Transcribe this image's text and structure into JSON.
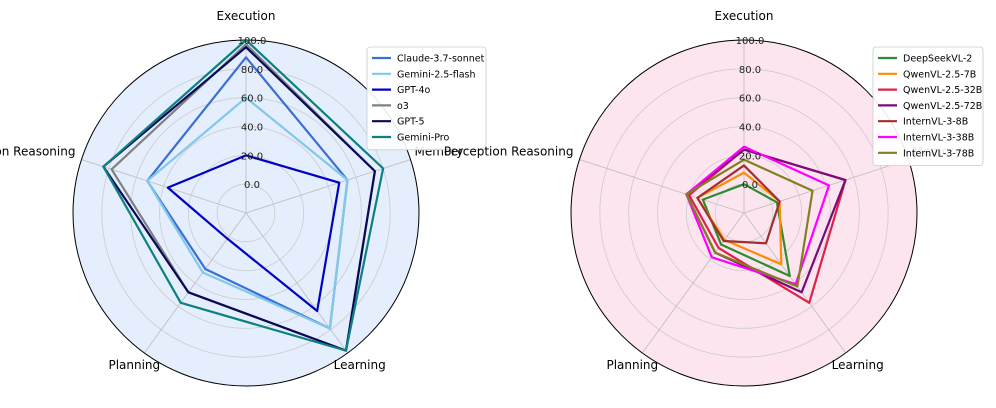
{
  "chart_data": [
    {
      "type": "radar",
      "axes": [
        "Execution",
        "Memory",
        "Learning",
        "Planning",
        "Perception Reasoning"
      ],
      "r_ticks": [
        "0.0",
        "20.0",
        "40.0",
        "60.0",
        "80.0",
        "100.0"
      ],
      "rlim": [
        -20,
        100
      ],
      "background": "#e4eefc",
      "legend": "top-right",
      "series": [
        {
          "name": "Claude-3.7-sonnet",
          "color": "#3b6fd4",
          "values": [
            88,
            54,
            79,
            28,
            52
          ]
        },
        {
          "name": "Gemini-2.5-flash",
          "color": "#82c8e8",
          "values": [
            60,
            54,
            79,
            31,
            52
          ]
        },
        {
          "name": "GPT-4o",
          "color": "#0000c4",
          "values": [
            20,
            48,
            64,
            2,
            37
          ]
        },
        {
          "name": "o3",
          "color": "#808080",
          "values": [
            97,
            74,
            98,
            48,
            78
          ]
        },
        {
          "name": "GPT-5",
          "color": "#08085a",
          "values": [
            95,
            74,
            98,
            48,
            84
          ]
        },
        {
          "name": "Gemini-Pro",
          "color": "#0d8080",
          "values": [
            100,
            80,
            98,
            57,
            84
          ]
        }
      ]
    },
    {
      "type": "radar",
      "axes": [
        "Execution",
        "Memory",
        "Learning",
        "Planning",
        "Perception Reasoning"
      ],
      "r_ticks": [
        "0.0",
        "20.0",
        "40.0",
        "60.0",
        "80.0",
        "100.0"
      ],
      "rlim": [
        -20,
        100
      ],
      "background": "#fde5f0",
      "legend": "top-right",
      "series": [
        {
          "name": "DeepSeekVL-2",
          "color": "#2e8b2e",
          "values": [
            0,
            4,
            34,
            7,
            10
          ]
        },
        {
          "name": "QwenVL-2.5-7B",
          "color": "#ff8c00",
          "values": [
            8,
            6,
            24,
            3,
            14
          ]
        },
        {
          "name": "QwenVL-2.5-32B",
          "color": "#e0204a",
          "values": [
            24,
            54,
            57,
            10,
            20
          ]
        },
        {
          "name": "QwenVL-2.5-72B",
          "color": "#7a0a7a",
          "values": [
            24,
            54,
            48,
            14,
            22
          ]
        },
        {
          "name": "InternVL-3-8B",
          "color": "#a03030",
          "values": [
            13,
            6,
            6,
            4,
            14
          ]
        },
        {
          "name": "InternVL-3-38B",
          "color": "#ff00ff",
          "values": [
            26,
            42,
            41,
            18,
            22
          ]
        },
        {
          "name": "InternVL-3-78B",
          "color": "#808020",
          "values": [
            17,
            30,
            43,
            14,
            22
          ]
        }
      ]
    }
  ]
}
